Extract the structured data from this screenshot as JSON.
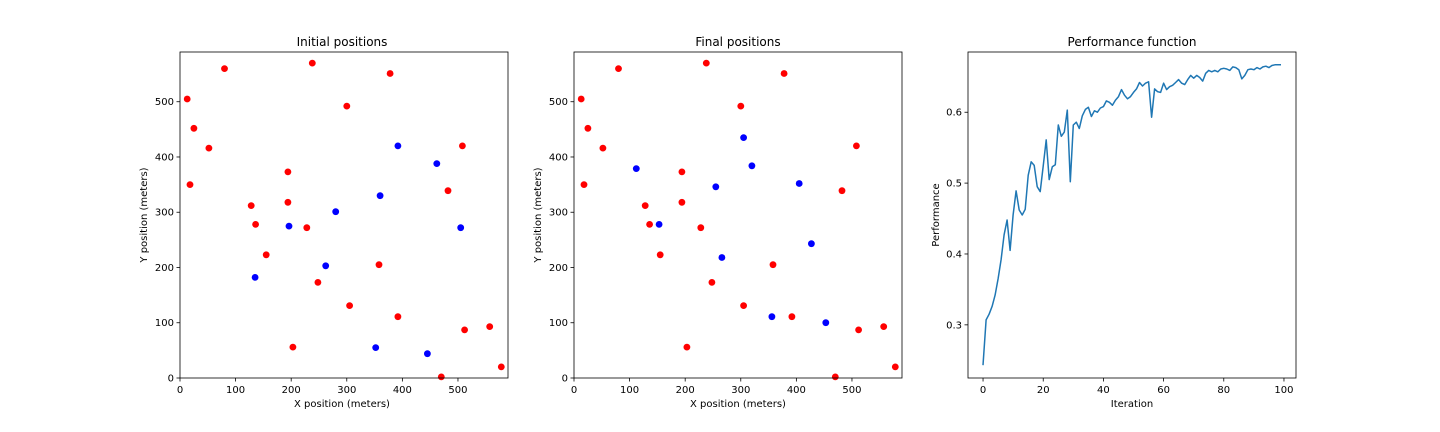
{
  "chart_data": [
    {
      "type": "scatter",
      "title": "Initial positions",
      "xlabel": "X position (meters)",
      "ylabel": "Y position (meters)",
      "xlim": [
        0,
        590
      ],
      "ylim": [
        0,
        590
      ],
      "xticks": [
        0,
        100,
        200,
        300,
        400,
        500
      ],
      "yticks": [
        0,
        100,
        200,
        300,
        400,
        500
      ],
      "grid": false,
      "series": [
        {
          "color": "#ff0000",
          "points": [
            [
              13,
              505
            ],
            [
              25,
              452
            ],
            [
              18,
              350
            ],
            [
              80,
              560
            ],
            [
              52,
              416
            ],
            [
              238,
              570
            ],
            [
              300,
              492
            ],
            [
              378,
              551
            ],
            [
              194,
              373
            ],
            [
              508,
              420
            ],
            [
              128,
              312
            ],
            [
              194,
              318
            ],
            [
              136,
              278
            ],
            [
              228,
              272
            ],
            [
              482,
              339
            ],
            [
              155,
              223
            ],
            [
              358,
              205
            ],
            [
              248,
              173
            ],
            [
              305,
              131
            ],
            [
              392,
              111
            ],
            [
              512,
              87
            ],
            [
              557,
              93
            ],
            [
              203,
              56
            ],
            [
              470,
              2
            ],
            [
              578,
              20
            ]
          ]
        },
        {
          "color": "#0000ff",
          "points": [
            [
              392,
              420
            ],
            [
              462,
              388
            ],
            [
              360,
              330
            ],
            [
              280,
              301
            ],
            [
              196,
              275
            ],
            [
              505,
              272
            ],
            [
              262,
              203
            ],
            [
              135,
              182
            ],
            [
              352,
              55
            ],
            [
              445,
              44
            ]
          ]
        }
      ]
    },
    {
      "type": "scatter",
      "title": "Final positions",
      "xlabel": "X position (meters)",
      "ylabel": "Y position (meters)",
      "xlim": [
        0,
        590
      ],
      "ylim": [
        0,
        590
      ],
      "xticks": [
        0,
        100,
        200,
        300,
        400,
        500
      ],
      "yticks": [
        0,
        100,
        200,
        300,
        400,
        500
      ],
      "grid": false,
      "series": [
        {
          "color": "#ff0000",
          "points": [
            [
              13,
              505
            ],
            [
              25,
              452
            ],
            [
              18,
              350
            ],
            [
              80,
              560
            ],
            [
              52,
              416
            ],
            [
              238,
              570
            ],
            [
              300,
              492
            ],
            [
              378,
              551
            ],
            [
              194,
              373
            ],
            [
              508,
              420
            ],
            [
              128,
              312
            ],
            [
              194,
              318
            ],
            [
              136,
              278
            ],
            [
              228,
              272
            ],
            [
              482,
              339
            ],
            [
              155,
              223
            ],
            [
              358,
              205
            ],
            [
              248,
              173
            ],
            [
              305,
              131
            ],
            [
              392,
              111
            ],
            [
              512,
              87
            ],
            [
              557,
              93
            ],
            [
              203,
              56
            ],
            [
              470,
              2
            ],
            [
              578,
              20
            ]
          ]
        },
        {
          "color": "#0000ff",
          "points": [
            [
              112,
              379
            ],
            [
              305,
              435
            ],
            [
              320,
              384
            ],
            [
              255,
              346
            ],
            [
              405,
              352
            ],
            [
              153,
              278
            ],
            [
              266,
              218
            ],
            [
              427,
              243
            ],
            [
              356,
              111
            ],
            [
              453,
              100
            ]
          ]
        }
      ]
    },
    {
      "type": "line",
      "title": "Performance function",
      "xlabel": "Iteration",
      "ylabel": "Performance",
      "xlim": [
        -5,
        104
      ],
      "ylim": [
        0.225,
        0.685
      ],
      "xticks": [
        0,
        20,
        40,
        60,
        80,
        100
      ],
      "yticks": [
        0.3,
        0.4,
        0.5,
        0.6
      ],
      "grid": false,
      "series": [
        {
          "color": "#1f77b4",
          "x": [
            0,
            1,
            2,
            3,
            4,
            5,
            6,
            7,
            8,
            9,
            10,
            11,
            12,
            13,
            14,
            15,
            16,
            17,
            18,
            19,
            20,
            21,
            22,
            23,
            24,
            25,
            26,
            27,
            28,
            29,
            30,
            31,
            32,
            33,
            34,
            35,
            36,
            37,
            38,
            39,
            40,
            41,
            42,
            43,
            44,
            45,
            46,
            47,
            48,
            49,
            50,
            51,
            52,
            53,
            54,
            55,
            56,
            57,
            58,
            59,
            60,
            61,
            62,
            63,
            64,
            65,
            66,
            67,
            68,
            69,
            70,
            71,
            72,
            73,
            74,
            75,
            76,
            77,
            78,
            79,
            80,
            81,
            82,
            83,
            84,
            85,
            86,
            87,
            88,
            89,
            90,
            91,
            92,
            93,
            94,
            95,
            96,
            97,
            98,
            99
          ],
          "y": [
            0.243,
            0.307,
            0.315,
            0.326,
            0.342,
            0.365,
            0.392,
            0.427,
            0.448,
            0.405,
            0.455,
            0.489,
            0.462,
            0.455,
            0.463,
            0.511,
            0.53,
            0.525,
            0.495,
            0.488,
            0.524,
            0.561,
            0.505,
            0.523,
            0.526,
            0.582,
            0.566,
            0.572,
            0.603,
            0.502,
            0.582,
            0.586,
            0.577,
            0.595,
            0.604,
            0.607,
            0.594,
            0.602,
            0.6,
            0.606,
            0.608,
            0.616,
            0.614,
            0.61,
            0.617,
            0.622,
            0.632,
            0.624,
            0.619,
            0.622,
            0.628,
            0.633,
            0.642,
            0.637,
            0.641,
            0.643,
            0.593,
            0.633,
            0.629,
            0.628,
            0.641,
            0.632,
            0.636,
            0.638,
            0.642,
            0.646,
            0.641,
            0.639,
            0.646,
            0.652,
            0.648,
            0.652,
            0.649,
            0.644,
            0.655,
            0.659,
            0.657,
            0.659,
            0.657,
            0.661,
            0.662,
            0.661,
            0.659,
            0.664,
            0.663,
            0.66,
            0.647,
            0.652,
            0.66,
            0.661,
            0.66,
            0.663,
            0.661,
            0.664,
            0.665,
            0.663,
            0.666,
            0.667,
            0.667,
            0.667
          ]
        }
      ]
    }
  ]
}
